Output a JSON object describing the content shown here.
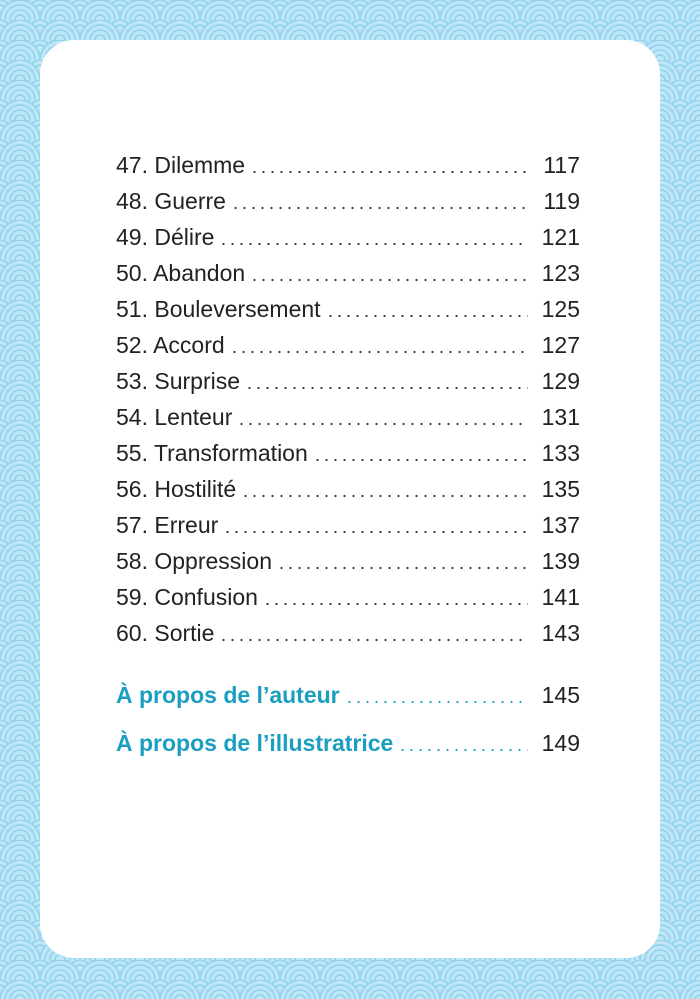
{
  "entries": [
    {
      "label": "47. Dilemme",
      "page": "117"
    },
    {
      "label": "48. Guerre",
      "page": "119"
    },
    {
      "label": "49. Délire",
      "page": "121"
    },
    {
      "label": "50. Abandon",
      "page": "123"
    },
    {
      "label": "51. Bouleversement",
      "page": "125"
    },
    {
      "label": "52. Accord",
      "page": "127"
    },
    {
      "label": "53. Surprise",
      "page": "129"
    },
    {
      "label": "54. Lenteur",
      "page": "131"
    },
    {
      "label": "55. Transformation",
      "page": "133"
    },
    {
      "label": "56. Hostilité",
      "page": "135"
    },
    {
      "label": "57. Erreur",
      "page": "137"
    },
    {
      "label": "58. Oppression",
      "page": "139"
    },
    {
      "label": "59. Confusion",
      "page": "141"
    },
    {
      "label": "60. Sortie",
      "page": "143"
    }
  ],
  "appendix": [
    {
      "label": "À propos de l’auteur",
      "page": "145"
    },
    {
      "label": "À propos de l’illustratrice",
      "page": "149"
    }
  ]
}
